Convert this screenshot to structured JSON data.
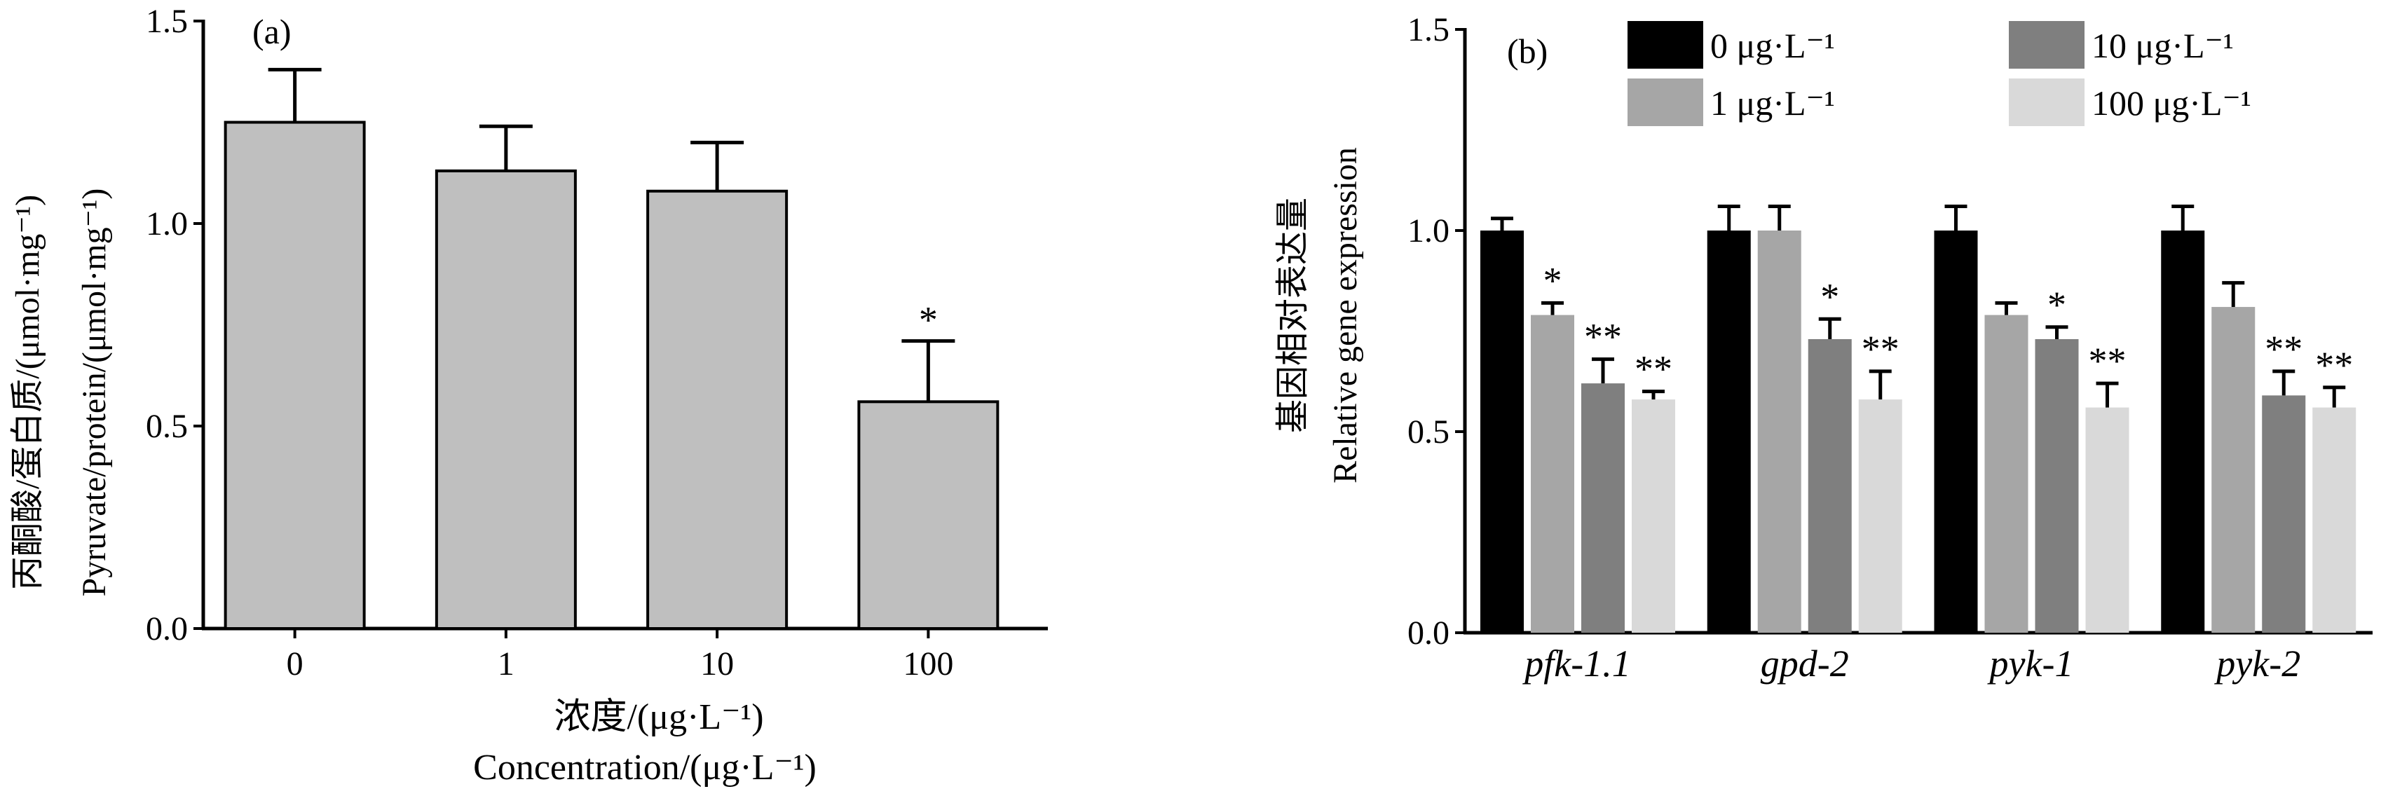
{
  "chart_data": [
    {
      "type": "bar",
      "panel_label": "(a)",
      "ylabel_cn": "丙酮酸/蛋白质/(μmol·mg⁻¹)",
      "ylabel_en": "Pyruvate/protein/(μmol·mg⁻¹)",
      "xlabel_cn": "浓度/(μg·L⁻¹)",
      "xlabel_en": "Concentration/(μg·L⁻¹)",
      "categories": [
        "0",
        "1",
        "10",
        "100"
      ],
      "values": [
        1.25,
        1.13,
        1.08,
        0.56
      ],
      "errors": [
        0.13,
        0.11,
        0.12,
        0.15
      ],
      "significance": [
        "",
        "",
        "",
        "*"
      ],
      "yticks": [
        "0.0",
        "0.5",
        "1.0",
        "1.5"
      ],
      "ylim": [
        0,
        1.5
      ],
      "bar_color": "#bfbfbf"
    },
    {
      "type": "bar",
      "panel_label": "(b)",
      "ylabel_cn": "基因相对表达量",
      "ylabel_en": "Relative gene expression",
      "categories": [
        "pfk-1.1",
        "gpd-2",
        "pyk-1",
        "pyk-2"
      ],
      "yticks": [
        "0.0",
        "0.5",
        "1.0",
        "1.5"
      ],
      "ylim": [
        0,
        1.5
      ],
      "series": [
        {
          "name": "0 μg·L⁻¹",
          "color": "#000000",
          "values": [
            1.0,
            1.0,
            1.0,
            1.0
          ],
          "errors": [
            0.03,
            0.06,
            0.06,
            0.06
          ],
          "significance": [
            "",
            "",
            "",
            ""
          ]
        },
        {
          "name": "1 μg·L⁻¹",
          "color": "#a6a6a6",
          "values": [
            0.79,
            1.0,
            0.79,
            0.81
          ],
          "errors": [
            0.03,
            0.06,
            0.03,
            0.06
          ],
          "significance": [
            "*",
            "",
            "",
            ""
          ]
        },
        {
          "name": "10 μg·L⁻¹",
          "color": "#7f7f7f",
          "values": [
            0.62,
            0.73,
            0.73,
            0.59
          ],
          "errors": [
            0.06,
            0.05,
            0.03,
            0.06
          ],
          "significance": [
            "**",
            "*",
            "*",
            "**"
          ]
        },
        {
          "name": "100 μg·L⁻¹",
          "color": "#d9d9d9",
          "values": [
            0.58,
            0.58,
            0.56,
            0.56
          ],
          "errors": [
            0.02,
            0.07,
            0.06,
            0.05
          ],
          "significance": [
            "**",
            "**",
            "**",
            "**"
          ]
        }
      ],
      "legend_position": "top"
    }
  ]
}
